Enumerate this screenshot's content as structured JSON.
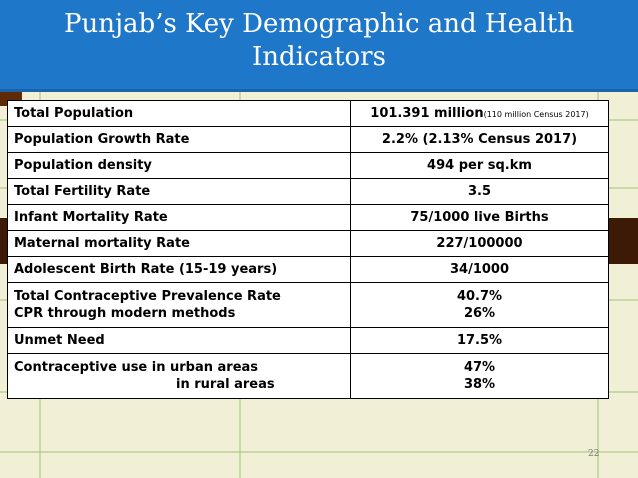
{
  "slide": {
    "title_line1": "Punjab’s Key Demographic and Health",
    "title_line2": "Indicators",
    "page_number": "22",
    "colors": {
      "title_band": "#1f77c9",
      "background": "#f1efd6",
      "accent_brown": "#3d1a05"
    }
  },
  "table": {
    "rows": [
      {
        "label": "Total Population",
        "value": "101.391 million",
        "note": "(110 million Census 2017)"
      },
      {
        "label": "Population Growth Rate",
        "value": "2.2% (2.13% Census 2017)"
      },
      {
        "label": "Population density",
        "value": "494 per sq.km"
      },
      {
        "label": "Total Fertility Rate",
        "value": "3.5"
      },
      {
        "label": "Infant Mortality Rate",
        "value": "75/1000 live Births"
      },
      {
        "label": "Maternal mortality Rate",
        "value": "227/100000"
      },
      {
        "label": "Adolescent Birth Rate (15-19 years)",
        "value": "34/1000"
      },
      {
        "label": "Total Contraceptive Prevalence Rate",
        "label2": "CPR through modern methods",
        "value": "40.7%",
        "value2": "26%"
      },
      {
        "label": "Unmet Need",
        "value": "17.5%"
      },
      {
        "label": "Contraceptive use in urban areas",
        "label2": "in rural areas",
        "value": "47%",
        "value2": "38%"
      }
    ]
  }
}
